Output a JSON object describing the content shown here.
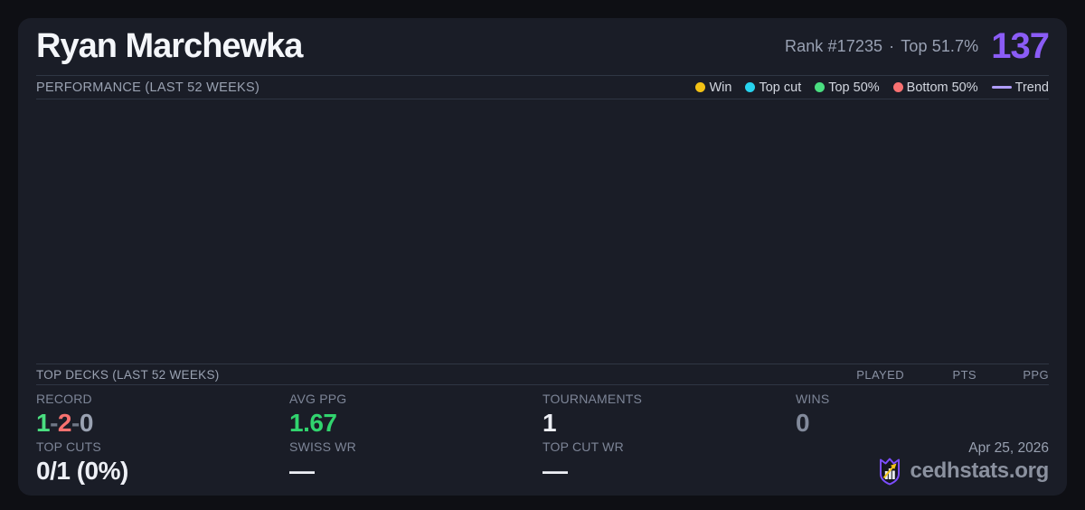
{
  "colors": {
    "page_bg": "#0e0f14",
    "card_bg": "#1a1d27",
    "divider": "#2f3644",
    "accent_purple": "#8b5cf6",
    "trend_purple": "#b09dfa",
    "win_yellow": "#f2c115",
    "top_cut_cyan": "#27d3ee",
    "top50_green": "#4ade80",
    "bottom50_red": "#f87171",
    "positive_green": "#31d46e",
    "muted_gray": "#7d8597"
  },
  "header": {
    "player_name": "Ryan Marchewka",
    "rank": "Rank #17235",
    "separator": "·",
    "top_percent": "Top 51.7%",
    "score": "137"
  },
  "performance": {
    "title": "PERFORMANCE (LAST 52 WEEKS)",
    "legend": [
      {
        "label": "Win",
        "color": "#f2c115",
        "marker": "dot"
      },
      {
        "label": "Top cut",
        "color": "#27d3ee",
        "marker": "dot"
      },
      {
        "label": "Top 50%",
        "color": "#4ade80",
        "marker": "dot"
      },
      {
        "label": "Bottom 50%",
        "color": "#f87171",
        "marker": "dot"
      },
      {
        "label": "Trend",
        "color": "#b09dfa",
        "marker": "line"
      }
    ],
    "chart": {
      "type": "scatter",
      "points": [],
      "note": "no data points plotted in last 52 weeks"
    }
  },
  "top_decks": {
    "title": "TOP DECKS (LAST 52 WEEKS)",
    "columns": [
      "PLAYED",
      "PTS",
      "PPG"
    ],
    "rows": []
  },
  "stats": {
    "record": {
      "label": "RECORD",
      "parts": [
        {
          "text": "1",
          "color": "#4ade80"
        },
        {
          "text": "-",
          "color": "#6f7787"
        },
        {
          "text": "2",
          "color": "#f8716f"
        },
        {
          "text": "-",
          "color": "#6f7787"
        },
        {
          "text": "0",
          "color": "#9aa2b2"
        }
      ]
    },
    "avg_ppg": {
      "label": "AVG PPG",
      "value": "1.67",
      "color": "#31d46e"
    },
    "tournaments": {
      "label": "TOURNAMENTS",
      "value": "1",
      "color": "#edeff5"
    },
    "wins": {
      "label": "WINS",
      "value": "0",
      "color": "#828a9b"
    },
    "top_cuts": {
      "label": "TOP CUTS",
      "value": "0/1 (0%)",
      "color": "#edeff5"
    },
    "swiss_wr": {
      "label": "SWISS WR",
      "value": "—",
      "color": "#edeff5"
    },
    "top_cut_wr": {
      "label": "TOP CUT WR",
      "value": "—",
      "color": "#edeff5"
    }
  },
  "footer": {
    "date": "Apr 25, 2026",
    "brand": "cedhstats.org",
    "logo_icon": "crown-shield-chart-icon"
  }
}
